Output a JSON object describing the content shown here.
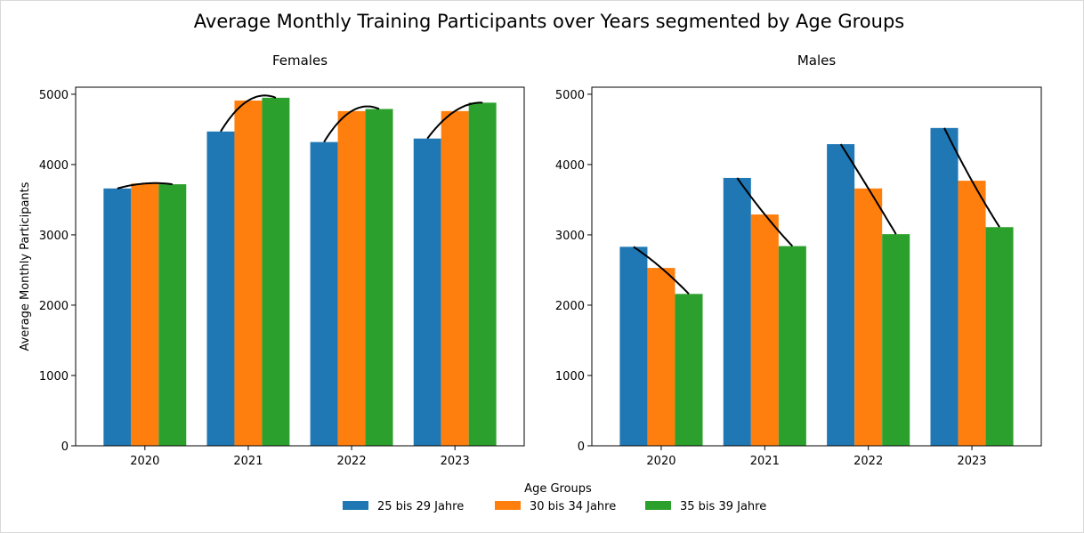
{
  "figure": {
    "title": "Average Monthly Training Participants over Years segmented by Age Groups"
  },
  "colors": {
    "series": [
      "#1f77b4",
      "#ff7f0e",
      "#2ca02c"
    ],
    "trend_line": "#000000"
  },
  "legend": {
    "title": "Age Groups",
    "placement": "bottom-center"
  },
  "chart_data": [
    {
      "type": "bar",
      "title": "Females",
      "xlabel": "",
      "ylabel": "Average Monthly Participants",
      "categories": [
        "2020",
        "2021",
        "2022",
        "2023"
      ],
      "ylim": [
        0,
        5100
      ],
      "yticks": [
        0,
        1000,
        2000,
        3000,
        4000,
        5000
      ],
      "grid": false,
      "series": [
        {
          "name": "25 bis 29 Jahre",
          "values": [
            3660,
            4470,
            4320,
            4370
          ]
        },
        {
          "name": "30 bis 34 Jahre",
          "values": [
            3730,
            4910,
            4760,
            4760
          ]
        },
        {
          "name": "35 bis 39 Jahre",
          "values": [
            3720,
            4950,
            4790,
            4880
          ]
        }
      ],
      "trend_lines": "smooth curve across each year's group bars"
    },
    {
      "type": "bar",
      "title": "Males",
      "xlabel": "",
      "ylabel": "",
      "categories": [
        "2020",
        "2021",
        "2022",
        "2023"
      ],
      "ylim": [
        0,
        5100
      ],
      "yticks": [
        0,
        1000,
        2000,
        3000,
        4000,
        5000
      ],
      "grid": false,
      "series": [
        {
          "name": "25 bis 29 Jahre",
          "values": [
            2830,
            3810,
            4290,
            4520
          ]
        },
        {
          "name": "30 bis 34 Jahre",
          "values": [
            2530,
            3290,
            3660,
            3770
          ]
        },
        {
          "name": "35 bis 39 Jahre",
          "values": [
            2160,
            2840,
            3010,
            3110
          ]
        }
      ],
      "trend_lines": "smooth curve across each year's group bars"
    }
  ]
}
